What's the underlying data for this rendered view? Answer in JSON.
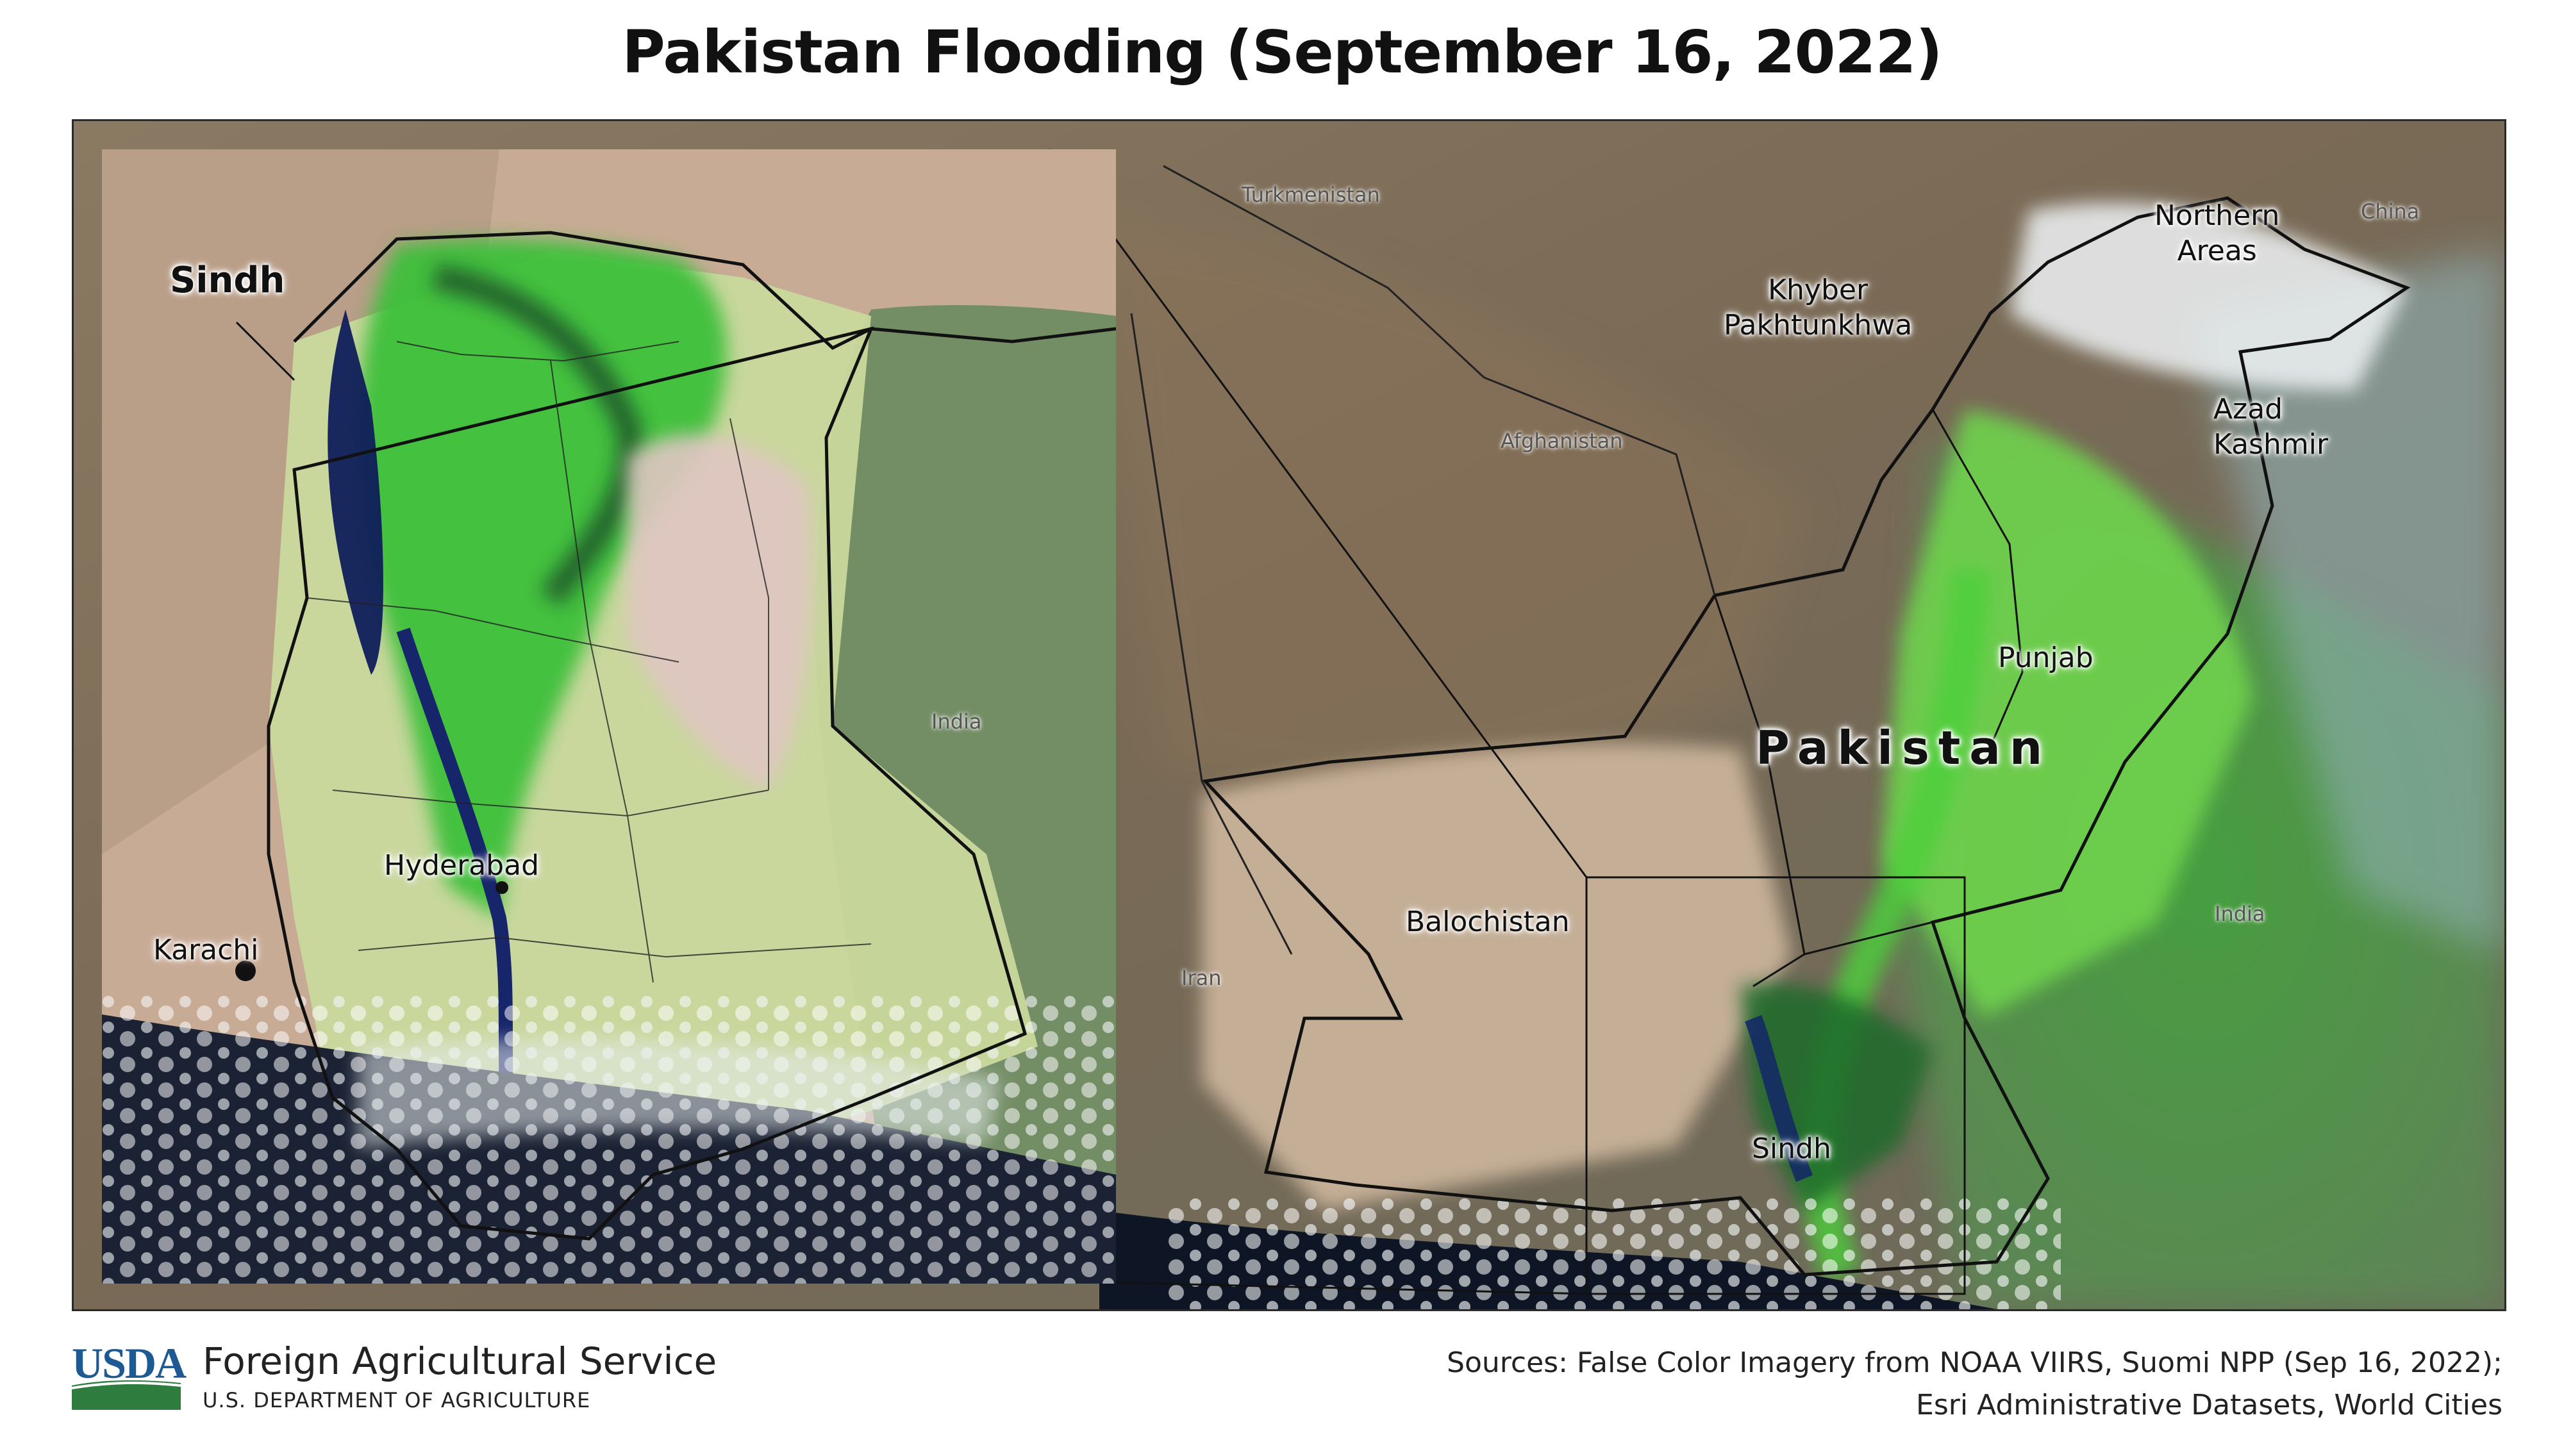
{
  "title": "Pakistan Flooding (September 16, 2022)",
  "inset": {
    "region_label": "Sindh",
    "cities": [
      {
        "name": "Hyderabad"
      },
      {
        "name": "Karachi"
      }
    ],
    "country_label": "India"
  },
  "main_map": {
    "country_label": "Pakistan",
    "regions": {
      "northern_areas": "Northern\nAreas",
      "khyber": "Khyber\nPakhtunkhwa",
      "azad_kashmir": "Azad\nKashmir",
      "punjab": "Punjab",
      "balochistan": "Balochistan",
      "sindh": "Sindh"
    },
    "neighbors": {
      "turkmenistan": "Turkmenistan",
      "afghanistan": "Afghanistan",
      "china": "China",
      "iran": "Iran",
      "india": "India"
    }
  },
  "footer": {
    "logo_text": "USDA",
    "agency": "Foreign Agricultural Service",
    "department": "U.S. DEPARTMENT OF AGRICULTURE",
    "sources_line1": "Sources: False Color Imagery from NOAA VIIRS, Suomi NPP (Sep 16, 2022);",
    "sources_line2": "Esri Administrative Datasets, World Cities"
  },
  "colors": {
    "vegetation": "#5fd84a",
    "flood_water": "#1a2a6e",
    "desert": "#c8b49a",
    "ocean": "#0e1626",
    "cloud": "#e8eef2",
    "usda_blue": "#1d5a94",
    "usda_green": "#2e7d3e"
  }
}
